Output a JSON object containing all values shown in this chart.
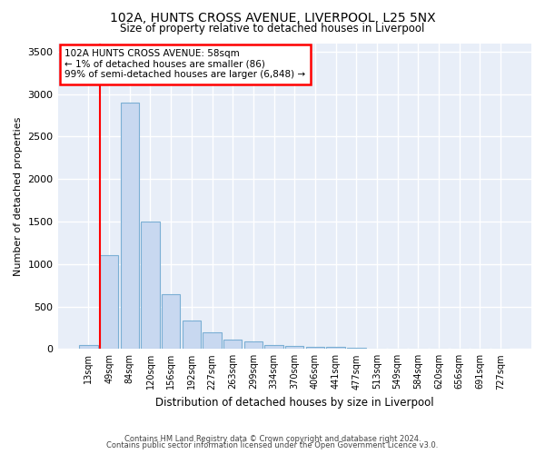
{
  "title_line1": "102A, HUNTS CROSS AVENUE, LIVERPOOL, L25 5NX",
  "title_line2": "Size of property relative to detached houses in Liverpool",
  "xlabel": "Distribution of detached houses by size in Liverpool",
  "ylabel": "Number of detached properties",
  "categories": [
    "13sqm",
    "49sqm",
    "84sqm",
    "120sqm",
    "156sqm",
    "192sqm",
    "227sqm",
    "263sqm",
    "299sqm",
    "334sqm",
    "370sqm",
    "406sqm",
    "441sqm",
    "477sqm",
    "513sqm",
    "549sqm",
    "584sqm",
    "620sqm",
    "656sqm",
    "691sqm",
    "727sqm"
  ],
  "values": [
    50,
    1100,
    2900,
    1500,
    640,
    330,
    200,
    105,
    90,
    50,
    35,
    25,
    20,
    12,
    8,
    4,
    3,
    2,
    1,
    1,
    0
  ],
  "bar_color": "#c8d8f0",
  "bar_edgecolor": "#7bafd4",
  "bar_linewidth": 0.8,
  "ylim": [
    0,
    3600
  ],
  "yticks": [
    0,
    500,
    1000,
    1500,
    2000,
    2500,
    3000,
    3500
  ],
  "annotation_box_text_line1": "102A HUNTS CROSS AVENUE: 58sqm",
  "annotation_box_text_line2": "← 1% of detached houses are smaller (86)",
  "annotation_box_text_line3": "99% of semi-detached houses are larger (6,848) →",
  "redline_x": 0.575,
  "background_color": "#ffffff",
  "plot_bg_color": "#e8eef8",
  "grid_color": "#ffffff",
  "footnote_line1": "Contains HM Land Registry data © Crown copyright and database right 2024.",
  "footnote_line2": "Contains public sector information licensed under the Open Government Licence v3.0."
}
